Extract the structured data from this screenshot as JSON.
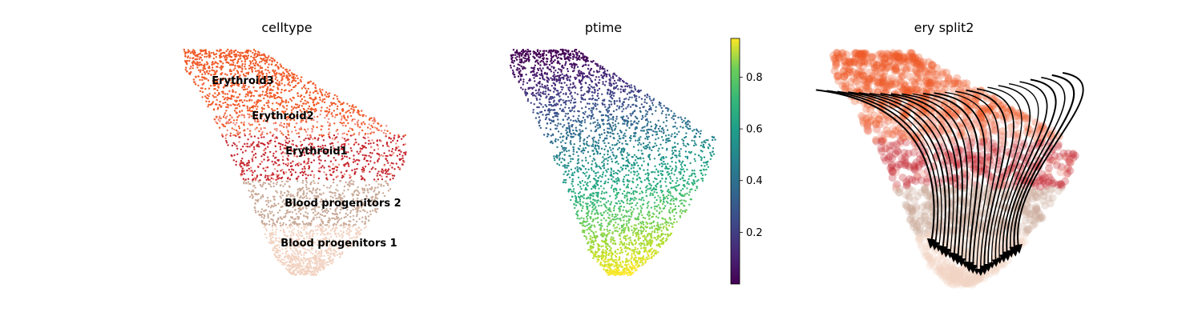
{
  "chart_data": [
    {
      "type": "scatter",
      "title": "celltype",
      "point_count": 3400,
      "legend": "on data",
      "series": [
        {
          "name": "Erythroid3",
          "color": "#f05a28"
        },
        {
          "name": "Erythroid2",
          "color": "#ef8a7c"
        },
        {
          "name": "Erythroid1",
          "color": "#c5262e"
        },
        {
          "name": "Blood progenitors 2",
          "color": "#c9aa98"
        },
        {
          "name": "Blood progenitors 1",
          "color": "#f2d3c2"
        }
      ]
    },
    {
      "type": "scatter",
      "title": "ptime",
      "point_count": 3400,
      "colormap": "viridis",
      "colorbar": {
        "range": [
          0.0,
          0.95
        ],
        "ticks": [
          "0.2",
          "0.4",
          "0.6",
          "0.8"
        ]
      }
    },
    {
      "type": "scatter",
      "title": "ery split2",
      "overlay": "velocity streamlines",
      "streamline_color": "#000000",
      "point_count": 1800
    }
  ]
}
